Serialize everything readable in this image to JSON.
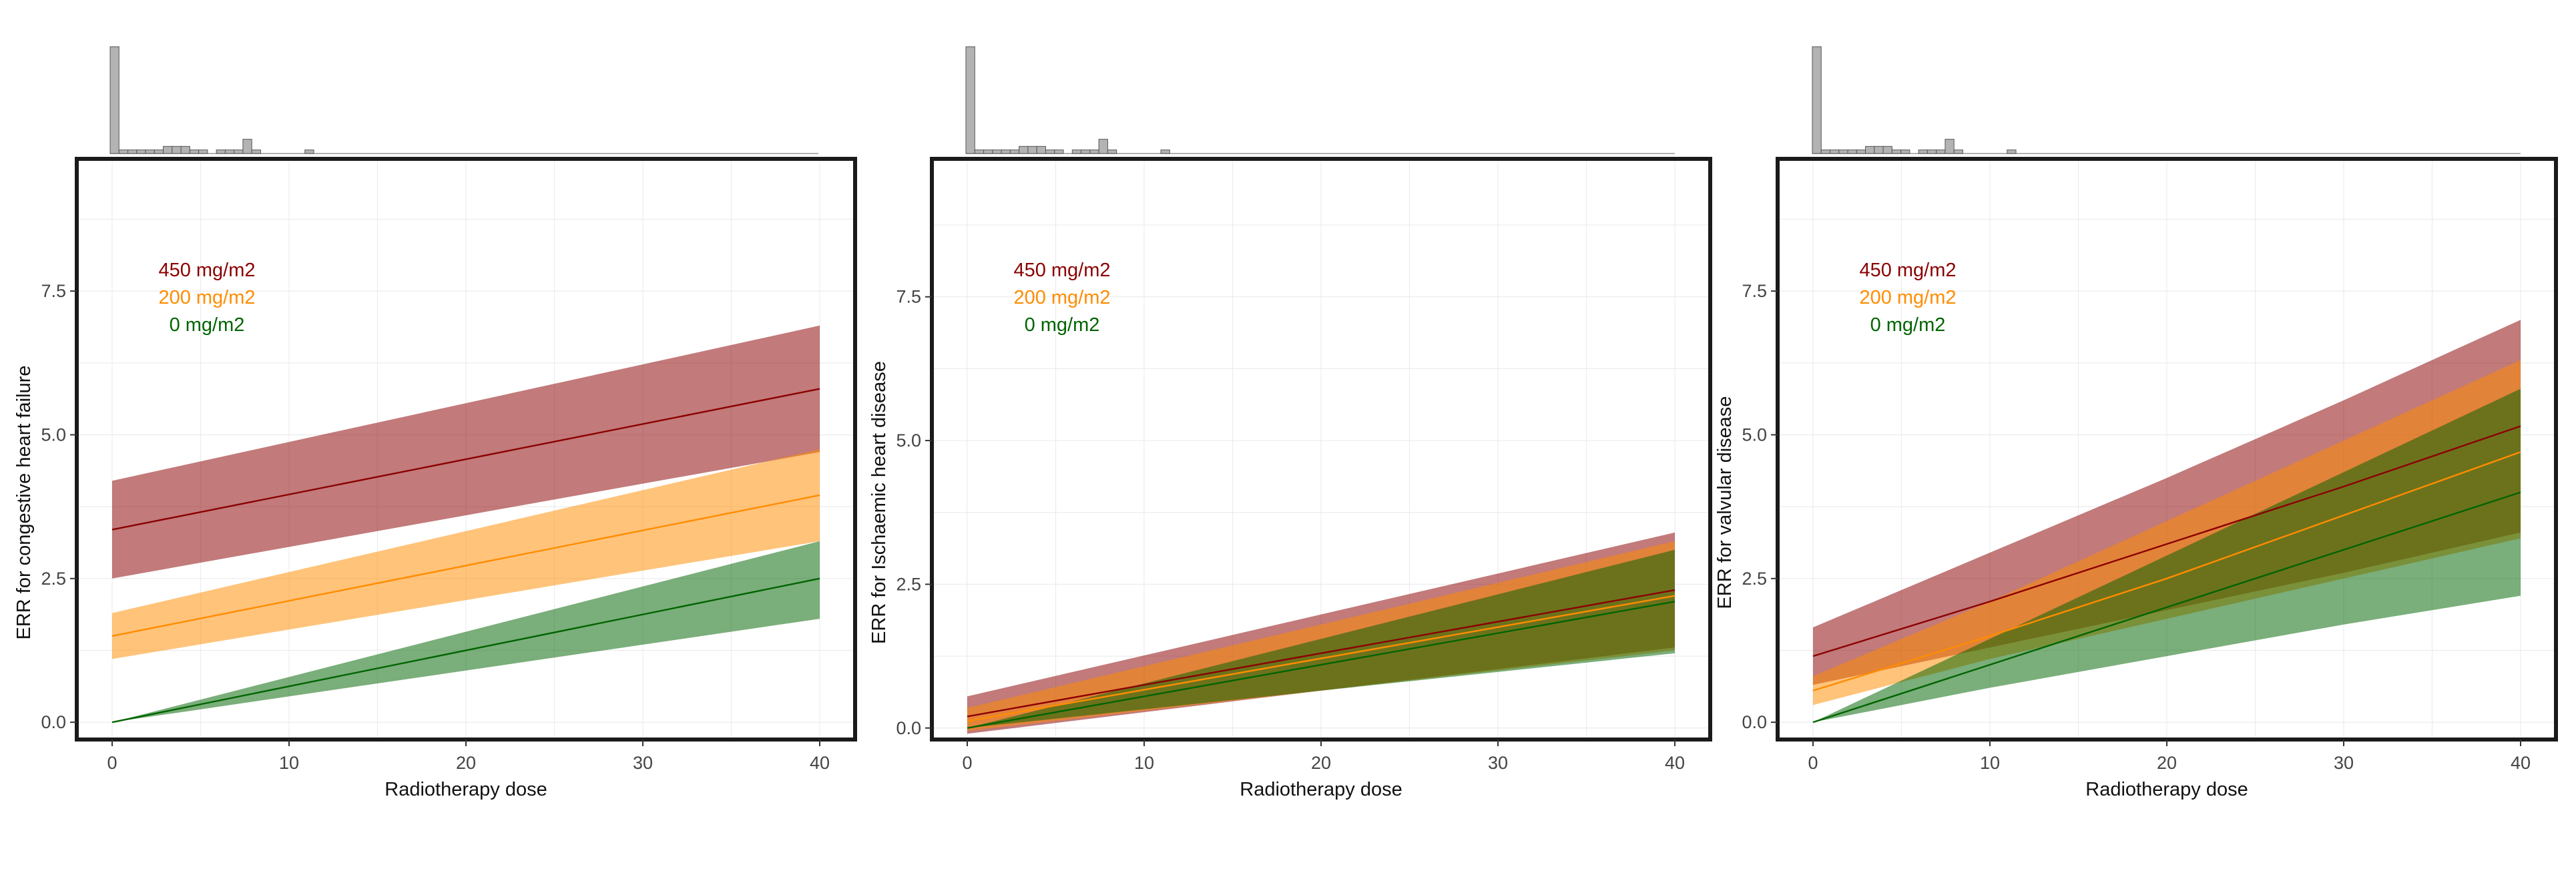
{
  "colors": {
    "450": "#8b0000",
    "200": "#ff8c00",
    "0": "#006400",
    "histogram_fill": "#b3b3b3",
    "panel_border": "#1a1a1a"
  },
  "chart_data": [
    {
      "type": "area",
      "xlabel": "Radiotherapy dose",
      "ylabel": "ERR for congestive heart failure",
      "xlim": [
        -2,
        42
      ],
      "ylim": [
        -0.3,
        9.8
      ],
      "x_ticks": [
        0,
        10,
        20,
        30,
        40
      ],
      "x_tick_labels": [
        "0",
        "10",
        "20",
        "30",
        "40"
      ],
      "y_ticks": [
        0,
        2.5,
        5,
        7.5
      ],
      "y_tick_labels": [
        "0.0",
        "2.5",
        "5.0",
        "7.5"
      ],
      "grid": true,
      "legend_position": "top-left",
      "legend": [
        "450 mg/m2",
        "200 mg/m2",
        "0 mg/m2"
      ],
      "series": [
        {
          "name": "450 mg/m2",
          "color_key": "450",
          "x": [
            0,
            40
          ],
          "y": [
            3.35,
            5.8
          ],
          "lower": [
            2.5,
            4.7
          ],
          "upper": [
            4.2,
            6.9
          ]
        },
        {
          "name": "200 mg/m2",
          "color_key": "200",
          "x": [
            0,
            40
          ],
          "y": [
            1.5,
            3.95
          ],
          "lower": [
            1.1,
            3.15
          ],
          "upper": [
            1.9,
            4.75
          ]
        },
        {
          "name": "0 mg/m2",
          "color_key": "0",
          "x": [
            0,
            40
          ],
          "y": [
            0,
            2.5
          ],
          "lower": [
            0,
            1.8
          ],
          "upper": [
            0,
            3.15
          ]
        }
      ],
      "histogram": {
        "bins": [
          0,
          0.5,
          1,
          1.5,
          2,
          2.5,
          3,
          3.5,
          4,
          4.5,
          5,
          5.5,
          6,
          6.5,
          7,
          7.5,
          8,
          8.5,
          9,
          9.5,
          10,
          10.5,
          11,
          11.5
        ],
        "counts": [
          30,
          1,
          1,
          1,
          1,
          1,
          2,
          2,
          2,
          1,
          1,
          0,
          1,
          1,
          1,
          4,
          1,
          0,
          0,
          0,
          0,
          0,
          1,
          0
        ]
      }
    },
    {
      "type": "area",
      "xlabel": "Radiotherapy dose",
      "ylabel": "ERR for Ischaemic heart disease",
      "xlim": [
        -2,
        42
      ],
      "ylim": [
        -0.2,
        9.9
      ],
      "x_ticks": [
        0,
        10,
        20,
        30,
        40
      ],
      "x_tick_labels": [
        "0",
        "10",
        "20",
        "30",
        "40"
      ],
      "y_ticks": [
        0,
        2.5,
        5,
        7.5
      ],
      "y_tick_labels": [
        "0.0",
        "2.5",
        "5.0",
        "7.5"
      ],
      "grid": true,
      "legend_position": "top-left",
      "legend": [
        "450 mg/m2",
        "200 mg/m2",
        "0 mg/m2"
      ],
      "series": [
        {
          "name": "450 mg/m2",
          "color_key": "450",
          "x": [
            0,
            40
          ],
          "y": [
            0.2,
            2.4
          ],
          "lower": [
            -0.1,
            1.4
          ],
          "upper": [
            0.55,
            3.4
          ]
        },
        {
          "name": "200 mg/m2",
          "color_key": "200",
          "x": [
            0,
            40
          ],
          "y": [
            0.12,
            2.3
          ],
          "lower": [
            -0.05,
            1.35
          ],
          "upper": [
            0.35,
            3.25
          ]
        },
        {
          "name": "0 mg/m2",
          "color_key": "0",
          "x": [
            0,
            40
          ],
          "y": [
            0,
            2.2
          ],
          "lower": [
            0,
            1.3
          ],
          "upper": [
            0,
            3.1
          ]
        }
      ],
      "histogram": {
        "bins": [
          0,
          0.5,
          1,
          1.5,
          2,
          2.5,
          3,
          3.5,
          4,
          4.5,
          5,
          5.5,
          6,
          6.5,
          7,
          7.5,
          8,
          8.5,
          9,
          9.5,
          10,
          10.5,
          11,
          11.5
        ],
        "counts": [
          30,
          1,
          1,
          1,
          1,
          1,
          2,
          2,
          2,
          1,
          1,
          0,
          1,
          1,
          1,
          4,
          1,
          0,
          0,
          0,
          0,
          0,
          1,
          0
        ]
      }
    },
    {
      "type": "area",
      "xlabel": "Radiotherapy dose",
      "ylabel": "ERR for valvular disease",
      "xlim": [
        -2,
        42
      ],
      "ylim": [
        -0.3,
        9.8
      ],
      "x_ticks": [
        0,
        10,
        20,
        30,
        40
      ],
      "x_tick_labels": [
        "0",
        "10",
        "20",
        "30",
        "40"
      ],
      "y_ticks": [
        0,
        2.5,
        5,
        7.5
      ],
      "y_tick_labels": [
        "0.0",
        "2.5",
        "5.0",
        "7.5"
      ],
      "grid": true,
      "legend_position": "top-left",
      "legend": [
        "450 mg/m2",
        "200 mg/m2",
        "0 mg/m2"
      ],
      "series": [
        {
          "name": "450 mg/m2",
          "color_key": "450",
          "x": [
            0,
            10,
            20,
            30,
            40
          ],
          "y": [
            1.15,
            2.1,
            3.1,
            4.1,
            5.15
          ],
          "lower": [
            0.65,
            1.3,
            1.95,
            2.6,
            3.3
          ],
          "upper": [
            1.65,
            2.95,
            4.25,
            5.6,
            7.0
          ]
        },
        {
          "name": "200 mg/m2",
          "color_key": "200",
          "x": [
            0,
            10,
            20,
            30,
            40
          ],
          "y": [
            0.55,
            1.5,
            2.5,
            3.6,
            4.7
          ],
          "lower": [
            0.3,
            1.1,
            1.8,
            2.5,
            3.2
          ],
          "upper": [
            0.8,
            2.1,
            3.5,
            4.9,
            6.3
          ]
        },
        {
          "name": "0 mg/m2",
          "color_key": "0",
          "x": [
            0,
            10,
            20,
            30,
            40
          ],
          "y": [
            0,
            1.0,
            2.0,
            3.0,
            4.0
          ],
          "lower": [
            0,
            0.6,
            1.15,
            1.7,
            2.2
          ],
          "upper": [
            0,
            1.45,
            2.9,
            4.35,
            5.8
          ]
        }
      ],
      "histogram": {
        "bins": [
          0,
          0.5,
          1,
          1.5,
          2,
          2.5,
          3,
          3.5,
          4,
          4.5,
          5,
          5.5,
          6,
          6.5,
          7,
          7.5,
          8,
          8.5,
          9,
          9.5,
          10,
          10.5,
          11,
          11.5
        ],
        "counts": [
          30,
          1,
          1,
          1,
          1,
          1,
          2,
          2,
          2,
          1,
          1,
          0,
          1,
          1,
          1,
          4,
          1,
          0,
          0,
          0,
          0,
          0,
          1,
          0
        ]
      }
    }
  ]
}
